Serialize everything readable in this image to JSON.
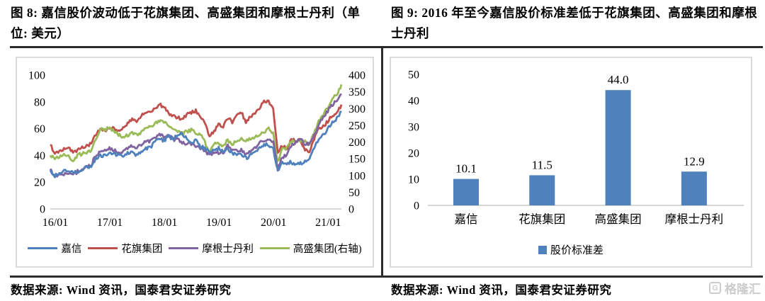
{
  "left_panel": {
    "title": "图 8: 嘉信股价波动低于花旗集团、高盛集团和摩根士丹利（单位: 美元）",
    "source": "数据来源: Wind 资讯，国泰君安证券研究"
  },
  "right_panel": {
    "title": "图 9: 2016 年至今嘉信股价标准差低于花旗集团、高盛集团和摩根士丹利",
    "source": "数据来源: Wind 资讯，国泰君安证券研究"
  },
  "watermark": {
    "icon": "gelonghui-logo",
    "icon_glyph": "G",
    "text": "格隆汇"
  },
  "colors": {
    "schwab_blue": "#4F81BD",
    "citi_red": "#C0504D",
    "morgan_purple": "#8064A2",
    "goldman_green": "#9BBB59",
    "axis_line": "#BFBFBF",
    "rule_dark": "#2B2B2B",
    "box_border": "#DBDBDB"
  },
  "chart_data": [
    {
      "type": "line",
      "title": "嘉信股价波动低于花旗集团、高盛集团和摩根士丹利（单位: 美元）",
      "x_start": "2016-01",
      "x_end": "2021-05",
      "x_tick_labels": [
        "16/01",
        "17/01",
        "18/01",
        "19/01",
        "20/01",
        "21/01"
      ],
      "x_tick_positions": [
        0,
        12,
        24,
        36,
        48,
        60
      ],
      "left_axis": {
        "min": 0,
        "max": 100,
        "ticks": [
          0,
          20,
          40,
          60,
          80,
          100
        ]
      },
      "right_axis": {
        "min": 0,
        "max": 400,
        "ticks": [
          0,
          50,
          100,
          150,
          200,
          250,
          300,
          350,
          400
        ]
      },
      "grid": false,
      "legend_position": "bottom",
      "series": [
        {
          "name": "嘉信",
          "axis": "left",
          "color": "#4F81BD",
          "values": [
            29,
            25,
            27,
            28,
            29,
            27,
            28,
            30,
            31,
            32,
            38,
            40,
            40,
            42,
            41,
            40,
            39,
            42,
            43,
            40,
            43,
            45,
            46,
            50,
            53,
            51,
            54,
            52,
            55,
            57,
            52,
            50,
            51,
            47,
            45,
            42,
            44,
            45,
            43,
            45,
            42,
            40,
            41,
            38,
            40,
            42,
            46,
            48,
            48,
            45,
            29,
            34,
            34,
            35,
            33,
            34,
            35,
            38,
            46,
            52,
            55,
            60,
            64,
            68,
            73
          ]
        },
        {
          "name": "花旗集团",
          "axis": "left",
          "color": "#C0504D",
          "values": [
            48,
            41,
            43,
            45,
            46,
            43,
            44,
            46,
            47,
            49,
            55,
            60,
            58,
            60,
            60,
            58,
            61,
            64,
            67,
            66,
            70,
            73,
            72,
            75,
            78,
            76,
            71,
            70,
            68,
            67,
            70,
            72,
            73,
            68,
            64,
            54,
            58,
            63,
            62,
            68,
            65,
            70,
            72,
            65,
            69,
            71,
            75,
            80,
            80,
            75,
            42,
            47,
            45,
            52,
            51,
            51,
            44,
            43,
            52,
            60,
            62,
            65,
            70,
            71,
            78
          ]
        },
        {
          "name": "摩根士丹利",
          "axis": "left",
          "color": "#8064A2",
          "values": [
            30,
            24,
            25,
            26,
            27,
            25,
            28,
            30,
            31,
            33,
            40,
            43,
            43,
            45,
            44,
            42,
            43,
            45,
            47,
            46,
            48,
            50,
            51,
            53,
            56,
            54,
            55,
            52,
            52,
            50,
            49,
            49,
            47,
            45,
            44,
            40,
            42,
            42,
            42,
            47,
            44,
            44,
            44,
            40,
            43,
            46,
            49,
            51,
            53,
            50,
            29,
            39,
            40,
            48,
            50,
            52,
            48,
            49,
            55,
            63,
            68,
            73,
            78,
            81,
            86
          ]
        },
        {
          "name": "高盛集团(右轴)",
          "axis": "right",
          "color": "#9BBB59",
          "values": [
            160,
            148,
            155,
            160,
            158,
            145,
            160,
            165,
            168,
            172,
            210,
            240,
            235,
            245,
            230,
            222,
            215,
            220,
            228,
            222,
            230,
            240,
            245,
            255,
            265,
            260,
            250,
            240,
            230,
            225,
            232,
            236,
            228,
            222,
            198,
            168,
            192,
            196,
            190,
            205,
            195,
            200,
            212,
            204,
            210,
            216,
            220,
            230,
            240,
            228,
            140,
            180,
            182,
            200,
            204,
            206,
            200,
            192,
            230,
            262,
            282,
            302,
            330,
            342,
            372
          ]
        }
      ],
      "draw_order": [
        1,
        3,
        2,
        0
      ]
    },
    {
      "type": "bar",
      "title": "2016 年至今股价标准差",
      "categories": [
        "嘉信",
        "花旗集团",
        "高盛集团",
        "摩根士丹利"
      ],
      "values": [
        10.1,
        11.5,
        44.0,
        12.9
      ],
      "data_labels": [
        "10.1",
        "11.5",
        "44.0",
        "12.9"
      ],
      "series_name": "股价标准差",
      "bar_color": "#4F81BD",
      "ylim": [
        0,
        50
      ],
      "yticks": [
        0,
        10,
        20,
        30,
        40,
        50
      ],
      "grid": false,
      "legend_position": "bottom"
    }
  ]
}
